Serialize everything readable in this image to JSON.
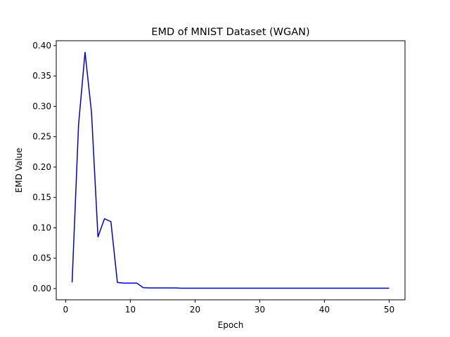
{
  "chart_data": {
    "type": "line",
    "title": "EMD of MNIST Dataset (WGAN)",
    "xlabel": "Epoch",
    "ylabel": "EMD Value",
    "xlim": [
      -1.45,
      52.45
    ],
    "ylim": [
      -0.0185,
      0.408
    ],
    "xticks": [
      0,
      10,
      20,
      30,
      40,
      50
    ],
    "yticks": [
      0.0,
      0.05,
      0.1,
      0.15,
      0.2,
      0.25,
      0.3,
      0.35,
      0.4
    ],
    "ytick_labels": [
      "0.00",
      "0.05",
      "0.10",
      "0.15",
      "0.20",
      "0.25",
      "0.30",
      "0.35",
      "0.40"
    ],
    "grid": false,
    "legend": "none",
    "series": [
      {
        "color": "#0000cc",
        "x": [
          1,
          2,
          3,
          4,
          5,
          6,
          7,
          8,
          9,
          10,
          11,
          12,
          13,
          14,
          15,
          16,
          17,
          18,
          19,
          20,
          21,
          22,
          23,
          24,
          25,
          26,
          27,
          28,
          29,
          30,
          31,
          32,
          33,
          34,
          35,
          36,
          37,
          38,
          39,
          40,
          41,
          42,
          43,
          44,
          45,
          46,
          47,
          48,
          49,
          50
        ],
        "y": [
          0.01,
          0.27,
          0.389,
          0.29,
          0.085,
          0.115,
          0.11,
          0.01,
          0.009,
          0.009,
          0.009,
          0.0015,
          0.001,
          0.001,
          0.001,
          0.001,
          0.001,
          0.0005,
          0.0005,
          0.0005,
          0.0005,
          0.0005,
          0.0005,
          0.0005,
          0.0005,
          0.0005,
          0.0005,
          0.0005,
          0.0005,
          0.0005,
          0.0005,
          0.0005,
          0.0005,
          0.0005,
          0.0005,
          0.0005,
          0.0005,
          0.0005,
          0.0005,
          0.0005,
          0.0005,
          0.0005,
          0.0005,
          0.0005,
          0.0005,
          0.0005,
          0.0005,
          0.0005,
          0.0005,
          0.0005
        ]
      }
    ]
  }
}
